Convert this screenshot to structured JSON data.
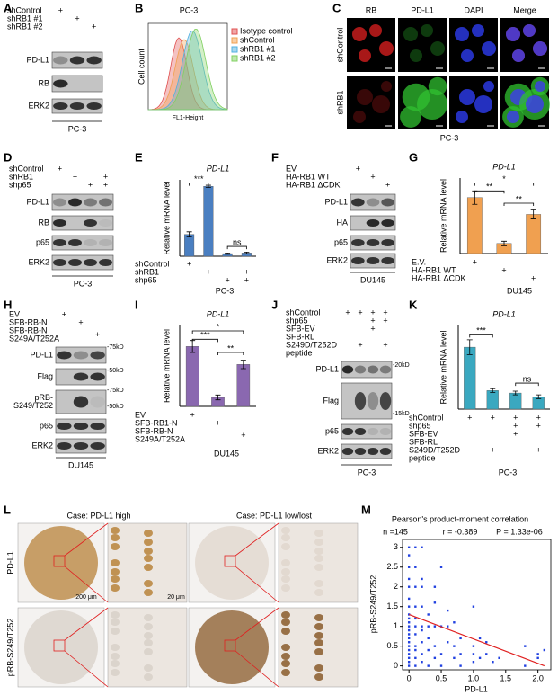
{
  "panels": {
    "A": {
      "letter": "A",
      "conditions": [
        {
          "label": [
            "shControl"
          ],
          "signs": [
            "+",
            null,
            null
          ]
        },
        {
          "label": [
            "shRB1 #1"
          ],
          "signs": [
            null,
            "+",
            null
          ]
        },
        {
          "label": [
            "shRB1 #2"
          ],
          "signs": [
            null,
            null,
            "+"
          ]
        }
      ],
      "blots": [
        [
          "PD-L1"
        ],
        [
          "RB"
        ],
        [
          "ERK2"
        ]
      ],
      "cell_line": "PC-3"
    },
    "B": {
      "letter": "B",
      "title": "PC-3",
      "ylabel": "Cell count",
      "xlabel": "FL1-Height",
      "legend": [
        {
          "name": "Isotype control",
          "color": "#e05050"
        },
        {
          "name": "shControl",
          "color": "#f0a050"
        },
        {
          "name": "shRB1 #1",
          "color": "#50b0e0"
        },
        {
          "name": "shRB1 #2",
          "color": "#80d060"
        }
      ]
    },
    "C": {
      "letter": "C",
      "columns": [
        {
          "label": "RB",
          "color": "#e02020"
        },
        {
          "label": "PD-L1",
          "color": "#20a020"
        },
        {
          "label": "DAPI",
          "color": "#2030e0"
        },
        {
          "label": "Merge",
          "color": "#000000"
        }
      ],
      "rows": [
        "shControl",
        "shRB1"
      ],
      "cell_line": "PC-3"
    },
    "D": {
      "letter": "D",
      "conditions": [
        {
          "label": [
            "shControl"
          ],
          "signs": [
            "+",
            null,
            null,
            null
          ]
        },
        {
          "label": [
            "shRB1"
          ],
          "signs": [
            null,
            "+",
            null,
            "+"
          ]
        },
        {
          "label": [
            "shp65"
          ],
          "signs": [
            null,
            null,
            "+",
            "+"
          ]
        }
      ],
      "blots": [
        [
          "PD-L1"
        ],
        [
          "RB"
        ],
        [
          "p65"
        ],
        [
          "ERK2"
        ]
      ],
      "cell_line": "PC-3"
    },
    "E": {
      "letter": "E",
      "title": "PD-L1",
      "ylabel": "Relative mRNA level",
      "color": "#4a7fc1",
      "values": [
        1.0,
        3.2,
        0.12,
        0.15
      ],
      "errors": [
        0.12,
        0.05,
        0.03,
        0.04
      ],
      "ylim": [
        0,
        3.5
      ],
      "significance": [
        "***",
        "ns"
      ],
      "conditions": [
        {
          "label": [
            "shControl"
          ],
          "signs": [
            "+",
            null,
            null,
            null
          ]
        },
        {
          "label": [
            "shRB1"
          ],
          "signs": [
            null,
            "+",
            null,
            "+"
          ]
        },
        {
          "label": [
            "shp65"
          ],
          "signs": [
            null,
            null,
            "+",
            "+"
          ]
        }
      ],
      "cell_line": "PC-3"
    },
    "F": {
      "letter": "F",
      "conditions": [
        {
          "label": [
            "EV"
          ],
          "signs": [
            "+",
            null,
            null
          ]
        },
        {
          "label": [
            "HA-RB1 WT"
          ],
          "signs": [
            null,
            "+",
            null
          ]
        },
        {
          "label": [
            "HA-RB1 ΔCDK"
          ],
          "signs": [
            null,
            null,
            "+"
          ]
        }
      ],
      "blots": [
        [
          "PD-L1"
        ],
        [
          "HA"
        ],
        [
          "p65"
        ],
        [
          "ERK2"
        ]
      ],
      "cell_line": "DU145"
    },
    "G": {
      "letter": "G",
      "title": "PD-L1",
      "ylabel": "Relative mRNA level",
      "color": "#f0a050",
      "values": [
        1.0,
        0.18,
        0.7
      ],
      "errors": [
        0.12,
        0.04,
        0.08
      ],
      "ylim": [
        0,
        1.35
      ],
      "significance": [
        "**",
        "*",
        "**"
      ],
      "conditions": [
        {
          "label": [
            "E.V."
          ],
          "signs": [
            "+",
            null,
            null
          ]
        },
        {
          "label": [
            "HA-RB1 WT"
          ],
          "signs": [
            null,
            "+",
            null
          ]
        },
        {
          "label": [
            "HA-RB1 ΔCDK"
          ],
          "signs": [
            null,
            null,
            "+"
          ]
        }
      ],
      "cell_line": "DU145"
    },
    "H": {
      "letter": "H",
      "conditions": [
        {
          "label": [
            "EV"
          ],
          "signs": [
            "+",
            null,
            null
          ]
        },
        {
          "label": [
            "SFB-RB-N"
          ],
          "signs": [
            null,
            "+",
            null
          ]
        },
        {
          "label": [
            "SFB-RB-N",
            "S249A/T252A"
          ],
          "signs": [
            null,
            null,
            "+"
          ]
        }
      ],
      "blots": [
        [
          "PD-L1"
        ],
        [
          "Flag"
        ],
        [
          "pRB-",
          "S249/T252"
        ],
        [
          "p65"
        ],
        [
          "ERK2"
        ]
      ],
      "markers": [
        "-75kD",
        "-50kD",
        "-75kD",
        "-50kD"
      ],
      "cell_line": "DU145"
    },
    "I": {
      "letter": "I",
      "title": "PD-L1",
      "ylabel": "Relative mRNA level",
      "color": "#8a68b0",
      "values": [
        1.0,
        0.15,
        0.7
      ],
      "errors": [
        0.1,
        0.04,
        0.07
      ],
      "ylim": [
        0,
        1.35
      ],
      "significance": [
        "***",
        "*",
        "**"
      ],
      "conditions": [
        {
          "label": [
            "EV"
          ],
          "signs": [
            "+",
            null,
            null
          ]
        },
        {
          "label": [
            "SFB-RB1-N"
          ],
          "signs": [
            null,
            "+",
            null
          ]
        },
        {
          "label": [
            "SFB-RB-N",
            "S249A/T252A"
          ],
          "signs": [
            null,
            null,
            "+"
          ]
        }
      ],
      "cell_line": "DU145"
    },
    "J": {
      "letter": "J",
      "conditions": [
        {
          "label": [
            "shControl"
          ],
          "signs": [
            "+",
            "+",
            "+",
            "+"
          ]
        },
        {
          "label": [
            "shp65"
          ],
          "signs": [
            null,
            null,
            "+",
            "+"
          ]
        },
        {
          "label": [
            "SFB-EV"
          ],
          "signs": [
            null,
            null,
            "+",
            null
          ]
        },
        {
          "label": [
            "SFB-RL",
            "S249D/T252D",
            "peptide"
          ],
          "signs": [
            null,
            "+",
            null,
            "+"
          ]
        }
      ],
      "blots": [
        [
          "PD-L1"
        ],
        [
          "Flag"
        ],
        [
          "p65"
        ],
        [
          "ERK2"
        ]
      ],
      "markers": [
        "-20kD",
        "-15kD"
      ],
      "cell_line": "PC-3"
    },
    "K": {
      "letter": "K",
      "title": "PD-L1",
      "ylabel": "Relative mRNA level",
      "color": "#3aa8c0",
      "values": [
        1.0,
        0.3,
        0.26,
        0.2
      ],
      "errors": [
        0.12,
        0.03,
        0.03,
        0.03
      ],
      "ylim": [
        0,
        1.35
      ],
      "significance": [
        "***",
        "ns"
      ],
      "conditions": [
        {
          "label": [
            "shControl"
          ],
          "signs": [
            "+",
            "+",
            "+",
            "+"
          ]
        },
        {
          "label": [
            "shp65"
          ],
          "signs": [
            null,
            null,
            "+",
            "+"
          ]
        },
        {
          "label": [
            "SFB-EV"
          ],
          "signs": [
            null,
            null,
            "+",
            null
          ]
        },
        {
          "label": [
            "SFB-RL",
            "S249D/T252D",
            "peptide"
          ],
          "signs": [
            null,
            "+",
            null,
            "+"
          ]
        }
      ],
      "cell_line": "PC-3"
    },
    "L": {
      "letter": "L",
      "cases": [
        "Case: PD-L1 high",
        "Case: PD-L1 low/lost"
      ],
      "rows": [
        "PD-L1",
        "pRB-S249/T252"
      ],
      "scale_bars": [
        "200 μm",
        "20 μm"
      ]
    },
    "M": {
      "letter": "M",
      "title": "Pearson's product-moment correlation",
      "stats": [
        "n =145",
        "r = -0.389",
        "P = 1.33e-06"
      ],
      "xlabel": "PD-L1",
      "ylabel": "pRB-S249/T252",
      "color": "#2040e0",
      "fit_color": "#e02020",
      "xlim": [
        -0.1,
        2.2
      ],
      "ylim": [
        -0.1,
        3.2
      ],
      "xticks": [
        0,
        0.5,
        {
          "value": 1,
          "label": "1.0"
        },
        1.5,
        {
          "value": 2,
          "label": "2.0"
        }
      ],
      "yticks": [
        0,
        0.5,
        1,
        1.5,
        2,
        2.5,
        3
      ],
      "x": [
        0,
        0,
        0,
        0,
        0,
        0,
        0,
        0,
        0,
        0,
        0,
        0,
        0,
        0,
        0,
        0,
        0,
        0,
        0,
        0,
        0,
        0.1,
        0.1,
        0.1,
        0.1,
        0.1,
        0.1,
        0.1,
        0.1,
        0.1,
        0.1,
        0.1,
        0.2,
        0.2,
        0.2,
        0.2,
        0.2,
        0.2,
        0.2,
        0.2,
        0.2,
        0.3,
        0.3,
        0.3,
        0.3,
        0.3,
        0.4,
        0.4,
        0.4,
        0.4,
        0.4,
        0.5,
        0.5,
        0.5,
        0.5,
        0.6,
        0.6,
        0.6,
        0.7,
        0.7,
        0.7,
        0.8,
        0.8,
        0.8,
        1,
        1,
        1,
        1,
        1.1,
        1.1,
        1.2,
        1.2,
        1.3,
        1.4,
        1.8,
        1.8,
        2,
        2,
        2.1
      ],
      "y": [
        0,
        0.1,
        0.2,
        0.3,
        0.4,
        0.5,
        0.6,
        0.7,
        0.8,
        0.9,
        1,
        1.1,
        1.2,
        1.3,
        1.5,
        1.7,
        2,
        2.2,
        2.5,
        2.8,
        3,
        0,
        0.2,
        0.4,
        0.5,
        0.8,
        1,
        1.2,
        1.5,
        2,
        2.5,
        3,
        0.1,
        0.3,
        0.6,
        0.9,
        1,
        1.5,
        2,
        2.2,
        3,
        0,
        0.4,
        0.7,
        1,
        1.3,
        0.2,
        0.5,
        1,
        1.6,
        2,
        0,
        0.3,
        1,
        2.5,
        0.6,
        1,
        1.4,
        0.2,
        0.5,
        1.1,
        0,
        0.3,
        0.7,
        0.1,
        0.3,
        0.5,
        1.5,
        0.2,
        0.7,
        0.3,
        0.6,
        0.1,
        0.2,
        0,
        0.5,
        0.2,
        0.3,
        0.4
      ],
      "fit_line": {
        "x": [
          0,
          2.1
        ],
        "y": [
          1.3,
          0
        ]
      }
    }
  }
}
